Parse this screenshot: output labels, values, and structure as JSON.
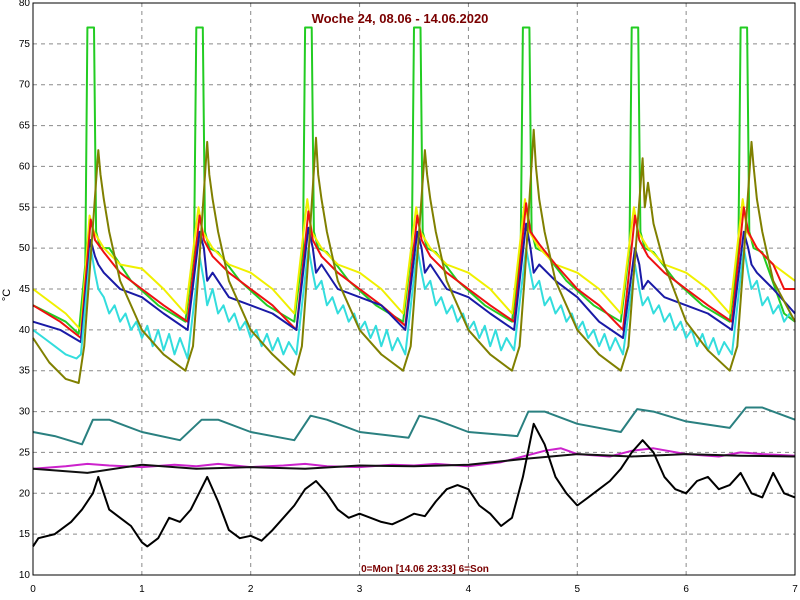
{
  "chart_data": {
    "type": "line",
    "title": "Woche 24, 08.06 - 14.06.2020",
    "footer": "0=Mon [14.06 23:33] 6=Son",
    "ylabel": "°C",
    "xlim": [
      0,
      7
    ],
    "ylim": [
      10,
      80
    ],
    "xticks": [
      "0",
      "1",
      "2",
      "3",
      "4",
      "5",
      "6",
      "7"
    ],
    "yticks": [
      "10",
      "15",
      "20",
      "25",
      "30",
      "35",
      "40",
      "45",
      "50",
      "55",
      "60",
      "65",
      "70",
      "75",
      "80"
    ],
    "grid": true,
    "series": [
      {
        "color": "#22cc22",
        "x": [
          0,
          0.3,
          0.42,
          0.48,
          0.5,
          0.56,
          0.58,
          0.62,
          0.7,
          0.9,
          1.15,
          1.4,
          1.48,
          1.5,
          1.56,
          1.58,
          1.62,
          1.7,
          1.9,
          2.15,
          2.4,
          2.48,
          2.5,
          2.56,
          2.58,
          2.62,
          2.7,
          2.9,
          3.15,
          3.4,
          3.48,
          3.5,
          3.56,
          3.58,
          3.62,
          3.7,
          3.9,
          4.15,
          4.4,
          4.48,
          4.5,
          4.56,
          4.58,
          4.62,
          4.7,
          4.9,
          5.15,
          5.4,
          5.48,
          5.5,
          5.56,
          5.58,
          5.62,
          5.7,
          5.9,
          6.15,
          6.4,
          6.48,
          6.5,
          6.56,
          6.58,
          6.62,
          6.7,
          6.9,
          7.0
        ],
        "y": [
          43,
          41,
          39.5,
          48,
          77,
          77,
          52,
          50,
          50,
          46,
          43,
          41,
          50,
          77,
          77,
          52,
          50,
          49.5,
          46,
          43,
          41,
          50,
          77,
          77,
          52,
          50,
          49.5,
          46,
          43,
          41,
          50,
          77,
          77,
          52,
          50,
          49.5,
          46,
          43,
          41,
          50,
          77,
          77,
          52,
          50,
          49.5,
          46,
          43,
          41,
          50,
          77,
          77,
          52,
          50,
          49.5,
          46,
          43,
          41,
          50,
          77,
          77,
          52,
          50,
          49.5,
          42,
          41
        ]
      },
      {
        "color": "#f0f000",
        "x": [
          0,
          0.3,
          0.44,
          0.52,
          0.56,
          0.65,
          0.8,
          1.0,
          1.2,
          1.4,
          1.52,
          1.56,
          1.65,
          1.8,
          2.0,
          2.2,
          2.4,
          2.52,
          2.56,
          2.65,
          2.8,
          3.0,
          3.2,
          3.4,
          3.52,
          3.56,
          3.65,
          3.8,
          4.0,
          4.2,
          4.4,
          4.52,
          4.56,
          4.65,
          4.8,
          5.0,
          5.2,
          5.4,
          5.52,
          5.56,
          5.65,
          5.8,
          6.0,
          6.2,
          6.4,
          6.52,
          6.56,
          6.65,
          6.8,
          7.0
        ],
        "y": [
          45,
          42,
          40,
          54,
          52,
          50,
          48,
          47.5,
          45,
          42,
          55,
          52,
          50,
          48,
          47,
          45,
          42,
          56,
          52,
          50,
          48,
          47,
          45,
          42,
          55,
          52,
          50,
          48,
          47,
          45,
          42,
          56,
          52,
          50,
          48,
          47,
          45,
          42,
          55,
          52,
          50,
          48,
          47,
          45,
          42,
          56,
          52,
          50,
          48,
          46
        ]
      },
      {
        "color": "#ee1111",
        "x": [
          0,
          0.25,
          0.44,
          0.53,
          0.57,
          0.65,
          0.8,
          1.0,
          1.2,
          1.42,
          1.53,
          1.57,
          1.65,
          1.8,
          2.0,
          2.2,
          2.42,
          2.53,
          2.57,
          2.65,
          2.8,
          3.0,
          3.2,
          3.42,
          3.53,
          3.57,
          3.65,
          3.8,
          4.0,
          4.2,
          4.42,
          4.53,
          4.57,
          4.65,
          4.8,
          5.0,
          5.2,
          5.42,
          5.53,
          5.57,
          5.65,
          5.8,
          6.0,
          6.2,
          6.42,
          6.53,
          6.57,
          6.65,
          6.8,
          6.9,
          7.0
        ],
        "y": [
          43,
          41,
          39,
          53.5,
          51,
          49.5,
          47,
          45,
          43,
          41,
          54,
          51,
          49,
          47,
          45,
          43,
          40,
          54.5,
          51,
          49,
          47,
          45,
          43,
          40.5,
          54,
          51,
          49,
          47,
          45,
          43,
          41,
          55.5,
          52,
          50.5,
          48,
          45,
          43,
          40,
          54,
          51,
          49,
          47,
          45,
          43,
          41,
          55,
          52,
          50,
          48,
          45,
          45
        ]
      },
      {
        "color": "#1a1aa6",
        "x": [
          0,
          0.25,
          0.44,
          0.53,
          0.57,
          0.6,
          0.65,
          0.8,
          1.0,
          1.2,
          1.42,
          1.53,
          1.57,
          1.6,
          1.65,
          1.8,
          2.0,
          2.2,
          2.42,
          2.53,
          2.57,
          2.6,
          2.65,
          2.8,
          3.0,
          3.2,
          3.42,
          3.53,
          3.57,
          3.6,
          3.65,
          3.8,
          4.0,
          4.2,
          4.42,
          4.53,
          4.57,
          4.6,
          4.65,
          4.8,
          5.0,
          5.2,
          5.42,
          5.53,
          5.57,
          5.6,
          5.65,
          5.8,
          6.0,
          6.2,
          6.42,
          6.53,
          6.57,
          6.6,
          6.65,
          6.8,
          7.0
        ],
        "y": [
          41,
          40,
          38.5,
          51,
          49,
          48,
          47,
          45,
          44,
          42,
          40,
          52,
          50,
          46,
          47,
          44,
          43,
          42,
          40,
          52.5,
          50,
          47,
          48,
          45,
          44,
          43,
          40,
          52,
          50,
          47,
          48,
          45,
          44,
          42,
          40,
          53,
          50,
          47,
          48,
          46,
          44,
          41,
          39,
          50,
          48,
          45,
          46,
          44,
          43,
          42,
          40,
          52,
          50,
          48,
          47,
          45,
          42
        ]
      },
      {
        "color": "#33dddd",
        "x": [
          0,
          0.1,
          0.2,
          0.3,
          0.4,
          0.44,
          0.53,
          0.57,
          0.6,
          0.65,
          0.7,
          0.75,
          0.8,
          0.85,
          0.9,
          0.95,
          1.0,
          1.05,
          1.1,
          1.15,
          1.2,
          1.25,
          1.3,
          1.35,
          1.42,
          1.53,
          1.57,
          1.6,
          1.65,
          1.7,
          1.75,
          1.8,
          1.85,
          1.9,
          1.95,
          2.0,
          2.05,
          2.1,
          2.15,
          2.2,
          2.25,
          2.3,
          2.35,
          2.42,
          2.53,
          2.57,
          2.6,
          2.65,
          2.7,
          2.75,
          2.8,
          2.85,
          2.9,
          2.95,
          3.0,
          3.05,
          3.1,
          3.15,
          3.2,
          3.25,
          3.3,
          3.35,
          3.42,
          3.53,
          3.57,
          3.6,
          3.65,
          3.7,
          3.75,
          3.8,
          3.85,
          3.9,
          3.95,
          4.0,
          4.05,
          4.1,
          4.15,
          4.2,
          4.25,
          4.3,
          4.35,
          4.42,
          4.53,
          4.57,
          4.6,
          4.65,
          4.7,
          4.75,
          4.8,
          4.85,
          4.9,
          4.95,
          5.0,
          5.05,
          5.1,
          5.15,
          5.2,
          5.25,
          5.3,
          5.35,
          5.42,
          5.53,
          5.57,
          5.6,
          5.65,
          5.7,
          5.75,
          5.8,
          5.85,
          5.9,
          5.95,
          6.0,
          6.05,
          6.1,
          6.15,
          6.2,
          6.25,
          6.3,
          6.35,
          6.42,
          6.53,
          6.57,
          6.6,
          6.65,
          6.7,
          6.75,
          6.8,
          6.85,
          6.9,
          6.95,
          7.0
        ],
        "y": [
          40,
          39,
          38,
          37,
          36.5,
          37,
          50,
          47,
          45,
          44,
          42,
          43,
          41,
          42,
          40,
          41,
          39,
          40.5,
          38,
          40,
          37.5,
          39.5,
          37,
          39,
          36.5,
          49,
          46,
          43,
          45,
          42,
          43,
          41,
          42,
          40,
          41,
          39,
          40,
          38,
          39.5,
          37.5,
          39,
          37,
          38.5,
          37,
          50,
          47,
          45,
          46,
          43,
          44,
          42,
          43,
          41,
          42,
          40,
          41,
          39,
          40.5,
          38,
          40,
          37.5,
          39,
          37,
          50,
          47,
          45,
          46,
          43,
          44,
          42,
          43,
          41,
          42,
          40,
          41,
          39,
          40.5,
          38,
          40,
          37.5,
          39,
          37.5,
          50,
          47,
          45,
          46,
          43,
          44,
          42,
          43,
          41,
          42,
          40,
          41,
          39,
          40,
          38,
          39.5,
          37.5,
          39,
          37,
          48,
          45,
          43,
          44,
          42,
          43,
          41,
          42,
          40,
          41,
          39,
          40,
          38,
          39.5,
          37.5,
          39,
          37,
          38.5,
          37,
          50,
          47,
          45,
          46,
          43,
          44,
          42,
          43,
          41,
          42,
          41
        ]
      },
      {
        "color": "#808000",
        "x": [
          0,
          0.15,
          0.3,
          0.42,
          0.47,
          0.52,
          0.6,
          0.62,
          0.65,
          0.7,
          0.8,
          1.0,
          1.2,
          1.4,
          1.47,
          1.52,
          1.6,
          1.62,
          1.65,
          1.7,
          1.8,
          2.0,
          2.2,
          2.4,
          2.47,
          2.52,
          2.6,
          2.62,
          2.65,
          2.7,
          2.8,
          3.0,
          3.2,
          3.4,
          3.47,
          3.52,
          3.6,
          3.62,
          3.65,
          3.7,
          3.8,
          4.0,
          4.2,
          4.4,
          4.47,
          4.52,
          4.6,
          4.62,
          4.65,
          4.7,
          4.8,
          5.0,
          5.2,
          5.4,
          5.47,
          5.52,
          5.6,
          5.62,
          5.65,
          5.7,
          5.8,
          6.0,
          6.2,
          6.4,
          6.47,
          6.52,
          6.6,
          6.62,
          6.65,
          6.7,
          6.8,
          7.0
        ],
        "y": [
          39,
          36,
          34,
          33.5,
          38,
          47,
          62,
          59,
          56,
          52,
          46,
          40,
          37,
          35,
          38,
          47,
          63,
          59,
          56,
          52,
          46,
          40,
          37,
          34.5,
          38,
          47,
          63.5,
          59,
          56,
          52,
          46,
          40,
          37,
          35,
          38,
          47,
          62,
          59,
          56,
          52,
          46,
          40,
          37,
          35,
          38,
          47,
          64.5,
          60,
          56,
          52,
          46,
          40,
          37,
          35,
          38,
          47,
          61,
          55,
          58,
          53,
          48,
          41,
          37.5,
          35,
          38,
          47,
          63,
          60,
          56,
          52,
          46,
          41
        ]
      },
      {
        "color": "#2a8080",
        "x": [
          0,
          0.2,
          0.45,
          0.55,
          0.7,
          1.0,
          1.35,
          1.55,
          1.7,
          2.0,
          2.4,
          2.55,
          2.7,
          3.0,
          3.45,
          3.55,
          3.7,
          4.0,
          4.45,
          4.55,
          4.7,
          5.0,
          5.4,
          5.55,
          5.7,
          6.0,
          6.4,
          6.55,
          6.7,
          7.0
        ],
        "y": [
          27.5,
          27,
          26,
          29,
          29,
          27.5,
          26.5,
          29,
          29,
          27.5,
          26.5,
          29.5,
          29,
          27.5,
          26.8,
          29.5,
          29,
          27.5,
          27,
          30,
          30,
          28.5,
          27.5,
          30.3,
          30,
          28.8,
          28,
          30.5,
          30.5,
          29
        ]
      },
      {
        "color": "#cc22cc",
        "x": [
          0,
          0.3,
          0.5,
          0.7,
          1.0,
          1.3,
          1.5,
          1.7,
          2.0,
          2.3,
          2.5,
          2.7,
          3.0,
          3.3,
          3.5,
          3.7,
          4.0,
          4.3,
          4.5,
          4.7,
          4.85,
          5.0,
          5.3,
          5.5,
          5.7,
          6.0,
          6.3,
          6.5,
          6.7,
          7.0
        ],
        "y": [
          23,
          23.3,
          23.6,
          23.4,
          23.2,
          23.5,
          23.3,
          23.6,
          23.2,
          23.4,
          23.6,
          23.3,
          23.2,
          23.5,
          23.4,
          23.6,
          23.3,
          23.8,
          24.5,
          25.2,
          25.5,
          24.8,
          24.5,
          25.2,
          25.5,
          24.8,
          24.5,
          25,
          24.8,
          24.6
        ]
      },
      {
        "color": "#111111",
        "x": [
          0,
          0.5,
          1.0,
          1.5,
          2.0,
          2.5,
          3.0,
          3.5,
          4.0,
          4.5,
          5.0,
          5.5,
          6.0,
          6.5,
          7.0
        ],
        "y": [
          23,
          22.5,
          23.5,
          23,
          23.2,
          23,
          23.4,
          23.3,
          23.5,
          24.2,
          24.8,
          24.5,
          24.8,
          24.6,
          24.5
        ]
      },
      {
        "color": "#000000",
        "x": [
          0,
          0.05,
          0.2,
          0.35,
          0.45,
          0.55,
          0.6,
          0.7,
          0.8,
          0.9,
          1.0,
          1.05,
          1.15,
          1.25,
          1.35,
          1.45,
          1.6,
          1.7,
          1.8,
          1.9,
          2.0,
          2.1,
          2.2,
          2.3,
          2.4,
          2.5,
          2.6,
          2.7,
          2.8,
          2.9,
          3.0,
          3.1,
          3.2,
          3.3,
          3.4,
          3.5,
          3.6,
          3.7,
          3.8,
          3.9,
          4.0,
          4.1,
          4.2,
          4.3,
          4.4,
          4.5,
          4.6,
          4.7,
          4.8,
          4.9,
          5.0,
          5.1,
          5.2,
          5.3,
          5.4,
          5.5,
          5.6,
          5.7,
          5.8,
          5.9,
          6.0,
          6.1,
          6.2,
          6.3,
          6.4,
          6.5,
          6.6,
          6.7,
          6.8,
          6.9,
          7.0
        ],
        "y": [
          13.5,
          14.5,
          15,
          16.5,
          18,
          20,
          22,
          18,
          17,
          16,
          14,
          13.5,
          14.5,
          17,
          16.5,
          18,
          22,
          19,
          15.5,
          14.5,
          14.8,
          14.2,
          15.5,
          17,
          18.5,
          20.5,
          21.5,
          20,
          18,
          17,
          17.5,
          17,
          16.5,
          16.2,
          16.8,
          17.5,
          17.2,
          19,
          20.5,
          21,
          20.5,
          18.5,
          17.5,
          16,
          17,
          22,
          28.5,
          26,
          22,
          20,
          18.5,
          19.5,
          20.5,
          21.5,
          23,
          25,
          26.5,
          25,
          22,
          20.5,
          20,
          21.5,
          22,
          20.5,
          21,
          22.5,
          20,
          19.5,
          22.5,
          20,
          19.5
        ]
      }
    ]
  }
}
